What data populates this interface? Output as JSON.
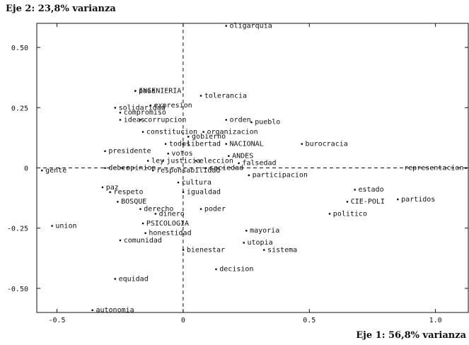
{
  "chart_data": {
    "type": "scatter",
    "xlabel": "Eje 1: 56,8% varianza",
    "ylabel": "Eje 2: 23,8% varianza",
    "xlim": [
      -0.58,
      1.13
    ],
    "ylim": [
      -0.6,
      0.6
    ],
    "xticks": [
      -0.5,
      0,
      0.5,
      1.0
    ],
    "xtick_labels": [
      "-0.5",
      "0",
      "0.5",
      "1.0"
    ],
    "yticks": [
      -0.5,
      -0.25,
      0,
      0.25,
      0.5
    ],
    "ytick_labels": [
      "-0.50",
      "-0.25",
      "0",
      "0.25",
      "0.50"
    ],
    "reference_lines": {
      "x": 0,
      "y": 0,
      "style": "dashed"
    },
    "points": [
      {
        "label": "oligarquia",
        "x": 0.17,
        "y": 0.59
      },
      {
        "label": "INGENIERIA",
        "x": -0.19,
        "y": 0.32
      },
      {
        "label": "pais",
        "x": -0.19,
        "y": 0.32
      },
      {
        "label": "tolerancia",
        "x": 0.07,
        "y": 0.3
      },
      {
        "label": "solidaridad",
        "x": -0.27,
        "y": 0.25
      },
      {
        "label": "expresion",
        "x": -0.13,
        "y": 0.26
      },
      {
        "label": "compromiso",
        "x": -0.25,
        "y": 0.23
      },
      {
        "label": "corrupcion",
        "x": -0.17,
        "y": 0.2
      },
      {
        "label": "ideas",
        "x": -0.25,
        "y": 0.2
      },
      {
        "label": "orden",
        "x": 0.17,
        "y": 0.2
      },
      {
        "label": "pueblo",
        "x": 0.27,
        "y": 0.19
      },
      {
        "label": "constitucion",
        "x": -0.16,
        "y": 0.15
      },
      {
        "label": "organizacion",
        "x": 0.08,
        "y": 0.15
      },
      {
        "label": "gobierno",
        "x": 0.02,
        "y": 0.13
      },
      {
        "label": "todos",
        "x": -0.07,
        "y": 0.1
      },
      {
        "label": "libertad",
        "x": 0.0,
        "y": 0.1
      },
      {
        "label": "NACIONAL",
        "x": 0.17,
        "y": 0.1
      },
      {
        "label": "burocracia",
        "x": 0.47,
        "y": 0.1
      },
      {
        "label": "presidente",
        "x": -0.31,
        "y": 0.07
      },
      {
        "label": "votos",
        "x": -0.06,
        "y": 0.06
      },
      {
        "label": "ANDES",
        "x": 0.18,
        "y": 0.05
      },
      {
        "label": "ley",
        "x": -0.14,
        "y": 0.03
      },
      {
        "label": "justicia",
        "x": -0.08,
        "y": 0.03
      },
      {
        "label": "eleccion",
        "x": 0.05,
        "y": 0.03
      },
      {
        "label": "falsedad",
        "x": 0.22,
        "y": 0.02
      },
      {
        "label": "sociedad",
        "x": 0.09,
        "y": 0.0
      },
      {
        "label": "representacion",
        "x": 1.12,
        "y": 0.0
      },
      {
        "label": "gente",
        "x": -0.56,
        "y": -0.01
      },
      {
        "label": "deber",
        "x": -0.31,
        "y": 0.0
      },
      {
        "label": "opinion",
        "x": -0.24,
        "y": 0.0
      },
      {
        "label": "responsabilidad",
        "x": -0.12,
        "y": -0.01
      },
      {
        "label": "participacion",
        "x": 0.26,
        "y": -0.03
      },
      {
        "label": "paz",
        "x": -0.32,
        "y": -0.08
      },
      {
        "label": "cultura",
        "x": -0.02,
        "y": -0.06
      },
      {
        "label": "estado",
        "x": 0.68,
        "y": -0.09
      },
      {
        "label": "respeto",
        "x": -0.29,
        "y": -0.1
      },
      {
        "label": "igualdad",
        "x": 0.0,
        "y": -0.1
      },
      {
        "label": "BOSQUE",
        "x": -0.26,
        "y": -0.14
      },
      {
        "label": "CIE-POLI",
        "x": 0.65,
        "y": -0.14
      },
      {
        "label": "partidos",
        "x": 0.85,
        "y": -0.13
      },
      {
        "label": "derecho",
        "x": -0.17,
        "y": -0.17
      },
      {
        "label": "poder",
        "x": 0.07,
        "y": -0.17
      },
      {
        "label": "dinero",
        "x": -0.11,
        "y": -0.19
      },
      {
        "label": "politico",
        "x": 0.58,
        "y": -0.19
      },
      {
        "label": "PSICOLOGIA",
        "x": -0.16,
        "y": -0.23
      },
      {
        "label": "union",
        "x": -0.52,
        "y": -0.24
      },
      {
        "label": "honestidad",
        "x": -0.15,
        "y": -0.27
      },
      {
        "label": "mayoria",
        "x": 0.25,
        "y": -0.26
      },
      {
        "label": "comunidad",
        "x": -0.25,
        "y": -0.3
      },
      {
        "label": "utopia",
        "x": 0.24,
        "y": -0.31
      },
      {
        "label": "bienestar",
        "x": 0.0,
        "y": -0.34
      },
      {
        "label": "sistema",
        "x": 0.32,
        "y": -0.34
      },
      {
        "label": "decision",
        "x": 0.13,
        "y": -0.42
      },
      {
        "label": "equidad",
        "x": -0.27,
        "y": -0.46
      },
      {
        "label": "autonomia",
        "x": -0.36,
        "y": -0.59
      }
    ]
  }
}
